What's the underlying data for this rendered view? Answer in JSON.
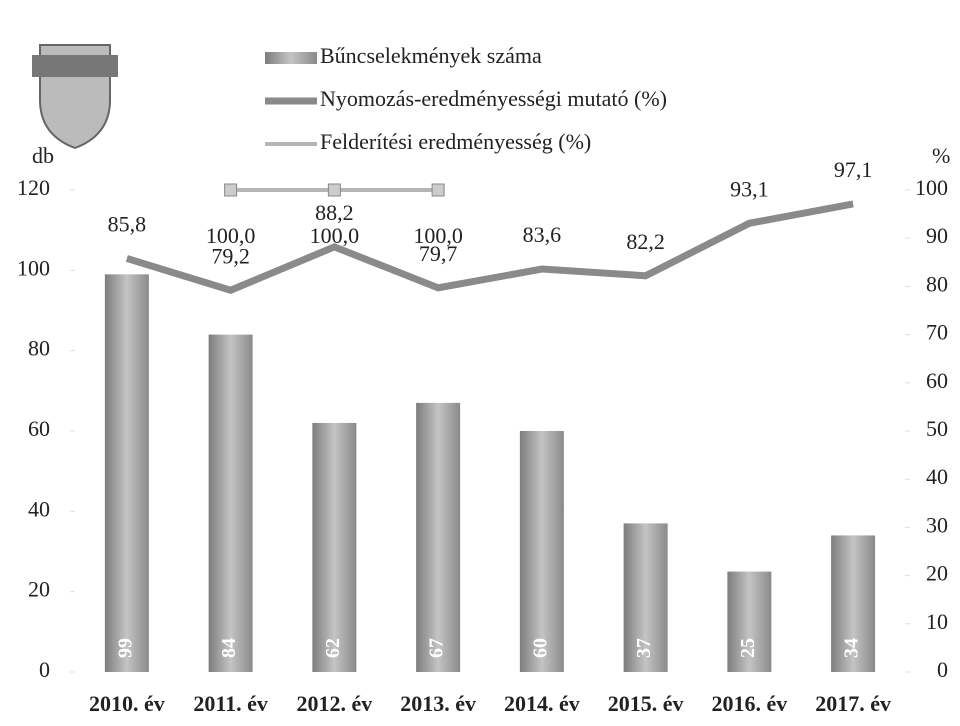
{
  "chart_data": {
    "type": "bar-line",
    "categories": [
      "2010. év",
      "2011. év",
      "2012. év",
      "2013. év",
      "2014. év",
      "2015. év",
      "2016. év",
      "2017. év"
    ],
    "ylabel": "db",
    "y2label": "%",
    "ylim": [
      0,
      120
    ],
    "yticks": [
      0,
      20,
      40,
      60,
      80,
      100,
      120
    ],
    "y2lim": [
      0,
      100
    ],
    "y2ticks": [
      0,
      10,
      20,
      30,
      40,
      50,
      60,
      70,
      80,
      90,
      100
    ],
    "series": [
      {
        "name": "Bűncselekmények száma",
        "type": "bar",
        "color": "#9a9a9a",
        "values": [
          99,
          84,
          62,
          67,
          60,
          37,
          25,
          34
        ]
      },
      {
        "name": "Nyomozás-eredményességi mutató (%)",
        "type": "line",
        "axis": "y2",
        "color": "#8a8a8a",
        "values": [
          85.8,
          79.2,
          88.2,
          79.7,
          83.6,
          82.2,
          93.1,
          97.1
        ],
        "value_labels": [
          "85,8",
          "79,2",
          "88,2",
          "79,7",
          "83,6",
          "82,2",
          "93,1",
          "97,1"
        ]
      },
      {
        "name": "Felderítési eredményesség (%)",
        "type": "line",
        "axis": "y2",
        "color": "#b5b5b5",
        "values": [
          null,
          100.0,
          100.0,
          100.0,
          null,
          null,
          null,
          null
        ],
        "value_labels": [
          null,
          "100,0",
          "100,0",
          "100,0",
          null,
          null,
          null,
          null
        ]
      }
    ]
  }
}
